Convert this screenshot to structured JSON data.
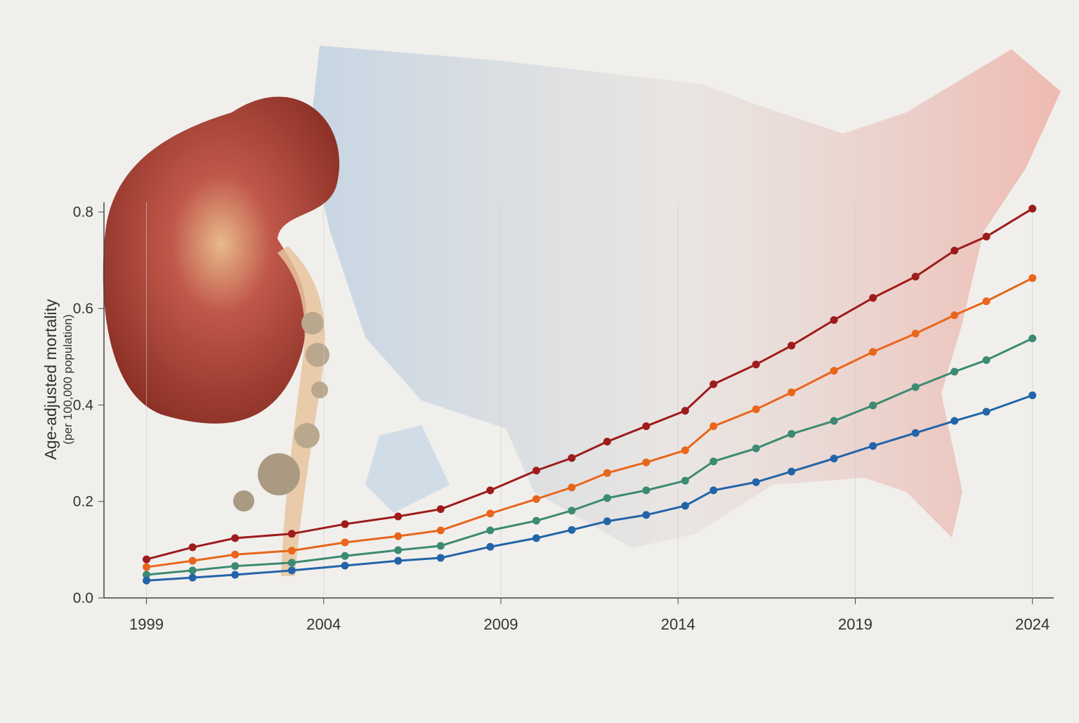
{
  "chart_data": {
    "type": "line",
    "ylabel": "Age-adjusted mortality",
    "ylabel_note": "(per 100,000 population)",
    "x": [
      1999,
      2000.3,
      2001.5,
      2003.1,
      2004.6,
      2006.1,
      2007.3,
      2008.7,
      2010,
      2011,
      2012,
      2013.1,
      2014.2,
      2015,
      2016.2,
      2017.2,
      2018.4,
      2019.5,
      2020.7,
      2021.8,
      2022.7,
      2024
    ],
    "series": [
      {
        "color": "#9e1b1b",
        "values": [
          0.08,
          0.105,
          0.124,
          0.133,
          0.153,
          0.169,
          0.184,
          0.223,
          0.264,
          0.29,
          0.324,
          0.356,
          0.388,
          0.443,
          0.484,
          0.523,
          0.576,
          0.622,
          0.666,
          0.72,
          0.749,
          0.807
        ]
      },
      {
        "color": "#e8661c",
        "values": [
          0.064,
          0.077,
          0.09,
          0.098,
          0.115,
          0.128,
          0.14,
          0.175,
          0.205,
          0.229,
          0.259,
          0.281,
          0.306,
          0.356,
          0.391,
          0.426,
          0.471,
          0.51,
          0.548,
          0.586,
          0.615,
          0.663
        ]
      },
      {
        "color": "#3c8a72",
        "values": [
          0.048,
          0.057,
          0.066,
          0.073,
          0.087,
          0.099,
          0.108,
          0.14,
          0.16,
          0.181,
          0.207,
          0.223,
          0.243,
          0.283,
          0.31,
          0.34,
          0.367,
          0.399,
          0.437,
          0.469,
          0.493,
          0.538
        ]
      },
      {
        "color": "#2364a8",
        "values": [
          0.036,
          0.042,
          0.048,
          0.057,
          0.067,
          0.077,
          0.083,
          0.106,
          0.124,
          0.141,
          0.159,
          0.172,
          0.191,
          0.223,
          0.24,
          0.262,
          0.289,
          0.315,
          0.342,
          0.367,
          0.386,
          0.42
        ]
      }
    ],
    "xlim": [
      1997.8,
      2024.6
    ],
    "xticks": [
      1999,
      2004,
      2009,
      2014,
      2019,
      2024
    ],
    "ylim": [
      0,
      0.82
    ],
    "yticks": [
      {
        "value": 0,
        "label": "0.0"
      },
      0.2,
      0.4,
      0.6,
      0.8
    ],
    "grid": true
  }
}
